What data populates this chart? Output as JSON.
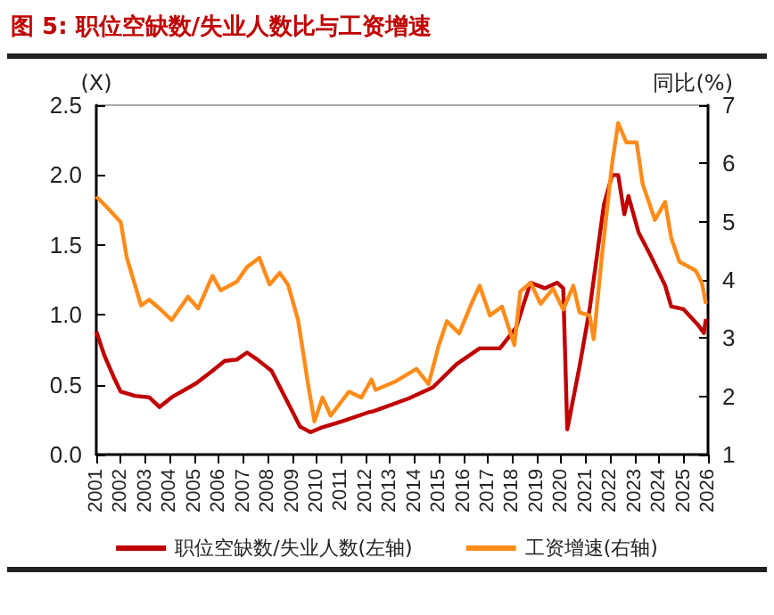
{
  "chart_data": {
    "type": "line",
    "title": "图 5: 职位空缺数/失业人数比与工资增速",
    "ylabel": "(X)",
    "y2label": "同比(%)",
    "xlim": [
      "2001-01",
      "2026-01"
    ],
    "xticks": [
      "2001",
      "2002",
      "2003",
      "2004",
      "2005",
      "2006",
      "2007",
      "2008",
      "2009",
      "2010",
      "2011",
      "2012",
      "2013",
      "2014",
      "2015",
      "2016",
      "2017",
      "2018",
      "2019",
      "2020",
      "2021",
      "2022",
      "2023",
      "2024",
      "2025",
      "2026"
    ],
    "ylim": [
      0,
      2.5
    ],
    "yticks": [
      {
        "value": 0,
        "label": "0.0"
      },
      0.5,
      {
        "value": 1,
        "label": "1.0"
      },
      1.5,
      {
        "value": 2,
        "label": "2.0"
      },
      2.5
    ],
    "y2lim": [
      1,
      7
    ],
    "y2ticks": [
      1,
      2,
      3,
      4,
      5,
      6,
      7
    ],
    "grid": false,
    "legend": "bottom",
    "marker": "none",
    "line_style": "solid",
    "series": [
      {
        "name": "职位空缺数/失业人数(左轴)",
        "color": "#c00000",
        "axis": "y",
        "x": [
          "2001-01",
          "2001-05",
          "2001-10",
          "2002-01",
          "2002-08",
          "2003-03",
          "2003-08",
          "2004-02",
          "2005-02",
          "2005-10",
          "2006-04",
          "2006-10",
          "2007-03",
          "2007-08",
          "2008-03",
          "2008-11",
          "2009-05",
          "2009-10",
          "2010-03",
          "2011-02",
          "2012-02",
          "2012-05",
          "2013-10",
          "2014-10",
          "2015-10",
          "2016-09",
          "2017-07",
          "2018-03",
          "2018-10",
          "2019-05",
          "2019-11",
          "2020-02",
          "2020-04",
          "2020-10",
          "2021-03",
          "2021-10",
          "2022-02",
          "2022-05",
          "2022-08",
          "2022-10",
          "2023-03",
          "2023-09",
          "2024-04",
          "2024-07",
          "2025-01",
          "2025-08",
          "2025-11",
          "2025-12"
        ],
        "values": [
          0.88,
          0.71,
          0.54,
          0.45,
          0.42,
          0.41,
          0.34,
          0.41,
          0.51,
          0.6,
          0.67,
          0.68,
          0.73,
          0.68,
          0.6,
          0.37,
          0.2,
          0.16,
          0.19,
          0.24,
          0.3,
          0.31,
          0.4,
          0.48,
          0.65,
          0.76,
          0.76,
          0.91,
          1.23,
          1.19,
          1.23,
          1.19,
          0.18,
          0.63,
          1.04,
          1.79,
          2.0,
          2.0,
          1.72,
          1.85,
          1.59,
          1.42,
          1.21,
          1.06,
          1.04,
          0.93,
          0.87,
          0.97
        ]
      },
      {
        "name": "工资增速(右轴)",
        "color": "#ff8c1a",
        "axis": "y2",
        "x": [
          "2001-01",
          "2001-07",
          "2002-01",
          "2002-04",
          "2002-11",
          "2003-03",
          "2003-08",
          "2004-02",
          "2004-10",
          "2005-03",
          "2005-10",
          "2006-02",
          "2006-10",
          "2007-03",
          "2007-09",
          "2008-02",
          "2008-07",
          "2008-11",
          "2009-04",
          "2009-09",
          "2009-12",
          "2010-04",
          "2010-08",
          "2011-05",
          "2011-11",
          "2012-04",
          "2012-06",
          "2013-04",
          "2014-02",
          "2014-08",
          "2015-01",
          "2015-05",
          "2015-11",
          "2016-05",
          "2016-09",
          "2017-02",
          "2017-08",
          "2018-02",
          "2018-05",
          "2018-10",
          "2019-03",
          "2019-09",
          "2020-02",
          "2020-07",
          "2020-10",
          "2021-03",
          "2021-05",
          "2021-09",
          "2022-02",
          "2022-05",
          "2022-09",
          "2023-02",
          "2023-05",
          "2023-11",
          "2024-04",
          "2024-07",
          "2024-11",
          "2025-07",
          "2025-10",
          "2025-12"
        ],
        "values": [
          5.43,
          5.22,
          4.99,
          4.38,
          3.56,
          3.66,
          3.51,
          3.31,
          3.71,
          3.51,
          4.07,
          3.82,
          3.97,
          4.22,
          4.38,
          3.92,
          4.12,
          3.92,
          3.31,
          2.18,
          1.57,
          1.98,
          1.67,
          2.08,
          1.98,
          2.29,
          2.11,
          2.26,
          2.47,
          2.21,
          2.88,
          3.29,
          3.08,
          3.59,
          3.9,
          3.39,
          3.54,
          2.88,
          3.8,
          3.95,
          3.59,
          3.85,
          3.49,
          3.9,
          3.44,
          3.39,
          2.98,
          4.42,
          6.01,
          6.69,
          6.36,
          6.36,
          5.65,
          5.03,
          5.34,
          4.72,
          4.31,
          4.16,
          3.95,
          3.59
        ]
      }
    ]
  }
}
